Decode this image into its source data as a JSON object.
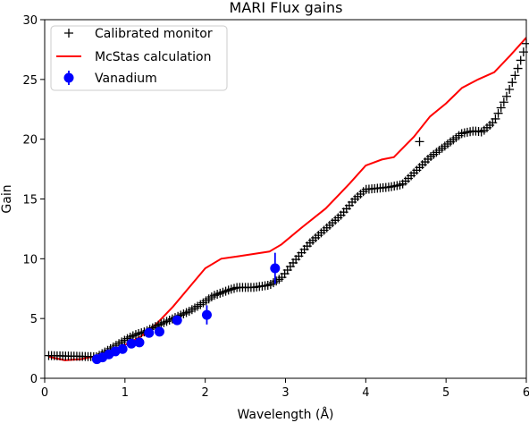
{
  "chart_data": {
    "type": "line",
    "title": "MARI Flux gains",
    "xlabel": "Wavelength (Å)",
    "ylabel": "Gain",
    "xlim": [
      0,
      6
    ],
    "ylim": [
      0,
      30
    ],
    "xticks": [
      0,
      1,
      2,
      3,
      4,
      5,
      6
    ],
    "yticks": [
      0,
      5,
      10,
      15,
      20,
      25,
      30
    ],
    "grid": false,
    "legend_position": "top-left",
    "series": [
      {
        "name": "Calibrated monitor",
        "kind": "markers",
        "marker": "plus",
        "color": "#000000",
        "points": [
          [
            0.05,
            1.9
          ],
          [
            0.65,
            1.8
          ],
          [
            0.75,
            2.2
          ],
          [
            0.85,
            2.6
          ],
          [
            0.95,
            3.0
          ],
          [
            1.05,
            3.4
          ],
          [
            1.15,
            3.7
          ],
          [
            1.25,
            3.9
          ],
          [
            1.4,
            4.4
          ],
          [
            1.6,
            5.0
          ],
          [
            1.8,
            5.6
          ],
          [
            1.95,
            6.2
          ],
          [
            2.1,
            6.9
          ],
          [
            2.3,
            7.4
          ],
          [
            2.4,
            7.6
          ],
          [
            2.6,
            7.6
          ],
          [
            2.8,
            7.8
          ],
          [
            2.95,
            8.4
          ],
          [
            3.1,
            9.7
          ],
          [
            3.3,
            11.3
          ],
          [
            3.5,
            12.5
          ],
          [
            3.7,
            13.7
          ],
          [
            3.85,
            14.9
          ],
          [
            4.0,
            15.8
          ],
          [
            4.3,
            16.0
          ],
          [
            4.45,
            16.2
          ],
          [
            4.65,
            17.5
          ],
          [
            4.8,
            18.5
          ],
          [
            5.0,
            19.5
          ],
          [
            5.2,
            20.5
          ],
          [
            5.35,
            20.7
          ],
          [
            5.45,
            20.6
          ],
          [
            5.6,
            21.5
          ],
          [
            5.75,
            23.5
          ],
          [
            5.9,
            26.0
          ],
          [
            6.0,
            28.0
          ]
        ],
        "outliers": [
          [
            4.67,
            19.8
          ]
        ]
      },
      {
        "name": "McStas calculation",
        "kind": "line",
        "color": "#ff0000",
        "x": [
          0.05,
          0.25,
          0.45,
          0.6,
          0.8,
          1.0,
          1.2,
          1.4,
          1.6,
          1.8,
          2.0,
          2.2,
          2.4,
          2.6,
          2.8,
          2.95,
          3.2,
          3.5,
          3.8,
          4.0,
          4.2,
          4.35,
          4.6,
          4.8,
          5.0,
          5.2,
          5.4,
          5.6,
          5.8,
          6.0
        ],
        "y": [
          1.8,
          1.5,
          1.6,
          1.8,
          2.2,
          2.8,
          3.5,
          4.6,
          6.0,
          7.6,
          9.2,
          10.0,
          10.2,
          10.4,
          10.6,
          11.2,
          12.6,
          14.2,
          16.3,
          17.8,
          18.3,
          18.5,
          20.2,
          21.9,
          23.0,
          24.3,
          25.0,
          25.6,
          27.0,
          28.5
        ]
      },
      {
        "name": "Vanadium",
        "kind": "errorbar",
        "marker": "circle",
        "color": "#0000ff",
        "points": [
          {
            "x": 0.65,
            "y": 1.6,
            "err": 0.2
          },
          {
            "x": 0.72,
            "y": 1.75,
            "err": 0.2
          },
          {
            "x": 0.8,
            "y": 2.0,
            "err": 0.2
          },
          {
            "x": 0.88,
            "y": 2.25,
            "err": 0.2
          },
          {
            "x": 0.97,
            "y": 2.45,
            "err": 0.2
          },
          {
            "x": 1.08,
            "y": 2.9,
            "err": 0.3
          },
          {
            "x": 1.18,
            "y": 3.0,
            "err": 0.3
          },
          {
            "x": 1.3,
            "y": 3.8,
            "err": 0.3
          },
          {
            "x": 1.43,
            "y": 3.9,
            "err": 0.3
          },
          {
            "x": 1.65,
            "y": 4.85,
            "err": 0.35
          },
          {
            "x": 2.02,
            "y": 5.3,
            "err": 0.8
          },
          {
            "x": 2.87,
            "y": 9.2,
            "err": 1.3
          }
        ]
      }
    ]
  }
}
